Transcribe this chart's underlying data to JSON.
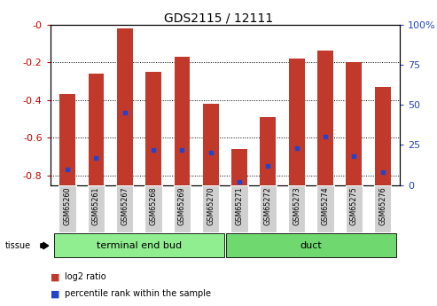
{
  "title": "GDS2115 / 12111",
  "samples": [
    "GSM65260",
    "GSM65261",
    "GSM65267",
    "GSM65268",
    "GSM65269",
    "GSM65270",
    "GSM65271",
    "GSM65272",
    "GSM65273",
    "GSM65274",
    "GSM65275",
    "GSM65276"
  ],
  "log2_ratio": [
    -0.37,
    -0.26,
    -0.02,
    -0.25,
    -0.17,
    -0.42,
    -0.66,
    -0.49,
    -0.18,
    -0.14,
    -0.2,
    -0.33
  ],
  "percentile_rank": [
    10,
    17,
    45,
    22,
    22,
    20,
    2,
    12,
    23,
    30,
    18,
    8
  ],
  "ylim_left": [
    -0.85,
    0.0
  ],
  "ylim_right": [
    0,
    100
  ],
  "yticks_left": [
    -0.8,
    -0.6,
    -0.4,
    -0.2,
    0.0
  ],
  "yticks_right": [
    0,
    25,
    50,
    75,
    100
  ],
  "ytick_labels_left": [
    "-0.8",
    "-0.6",
    "-0.4",
    "-0.2",
    "-0"
  ],
  "ytick_labels_right": [
    "0",
    "25",
    "50",
    "75",
    "100%"
  ],
  "group_teb": {
    "name": "terminal end bud",
    "start": 0,
    "end": 5,
    "color": "#90EE90"
  },
  "group_duct": {
    "name": "duct",
    "start": 6,
    "end": 11,
    "color": "#6FD96F"
  },
  "bar_color": "#C0392B",
  "percentile_color": "#2244CC",
  "bar_width": 0.55,
  "tissue_label": "tissue",
  "legend_items": [
    {
      "color": "#C0392B",
      "label": "log2 ratio"
    },
    {
      "color": "#2244CC",
      "label": "percentile rank within the sample"
    }
  ],
  "bg_color": "#FFFFFF",
  "plot_bg": "#FFFFFF",
  "grid_color": "#000000",
  "tick_label_bg": "#D0D0D0",
  "title_fontsize": 10,
  "axis_fontsize": 8,
  "sample_fontsize": 5.8,
  "group_fontsize": 8,
  "legend_fontsize": 7
}
